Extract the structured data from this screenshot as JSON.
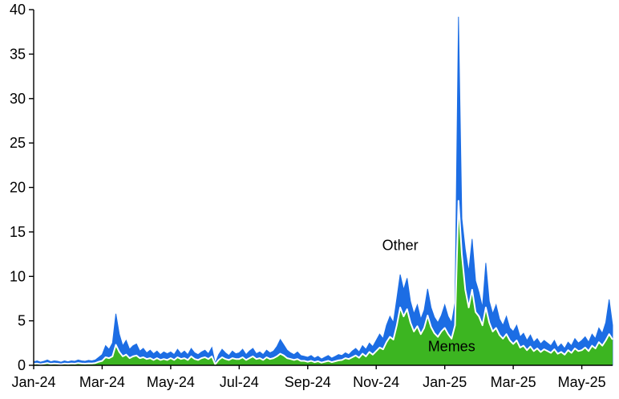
{
  "chart_data": {
    "type": "area",
    "stacked": true,
    "title": "",
    "xlabel": "",
    "ylabel": "",
    "grid": false,
    "legend_position": "none",
    "ylim": [
      0,
      40
    ],
    "y_ticks": [
      0,
      5,
      10,
      15,
      20,
      25,
      30,
      35,
      40
    ],
    "x_tick_labels": [
      "Jan-24",
      "Mar-24",
      "May-24",
      "Jul-24",
      "Sep-24",
      "Nov-24",
      "Jan-25",
      "Mar-25",
      "May-25"
    ],
    "x_tick_indices": [
      0,
      20,
      40,
      60,
      80,
      100,
      120,
      140,
      160
    ],
    "colors": {
      "memes": "#3cb521",
      "other": "#1c6de4",
      "separator": "#ffffff",
      "axis": "#000000"
    },
    "series": [
      {
        "name": "Memes",
        "color": "#3cb521",
        "values": [
          0.15,
          0.2,
          0.12,
          0.18,
          0.25,
          0.15,
          0.2,
          0.17,
          0.12,
          0.2,
          0.15,
          0.2,
          0.18,
          0.25,
          0.2,
          0.18,
          0.22,
          0.2,
          0.25,
          0.4,
          0.5,
          0.9,
          0.8,
          1.0,
          2.3,
          1.5,
          1.0,
          1.2,
          0.8,
          1.0,
          1.1,
          0.8,
          0.9,
          0.7,
          0.8,
          0.6,
          0.8,
          0.6,
          0.7,
          0.6,
          0.8,
          0.6,
          0.9,
          0.7,
          0.8,
          0.6,
          1.0,
          0.7,
          0.6,
          0.8,
          0.9,
          0.7,
          1.0,
          0.12,
          0.6,
          0.9,
          0.7,
          0.6,
          0.8,
          0.7,
          0.7,
          0.9,
          0.6,
          0.8,
          1.0,
          0.7,
          0.8,
          0.6,
          0.9,
          0.7,
          0.8,
          1.0,
          1.3,
          1.1,
          0.8,
          0.7,
          0.6,
          0.7,
          0.5,
          0.5,
          0.4,
          0.5,
          0.35,
          0.45,
          0.3,
          0.4,
          0.5,
          0.35,
          0.45,
          0.55,
          0.6,
          0.8,
          0.7,
          0.9,
          1.1,
          0.85,
          1.3,
          1.0,
          1.5,
          1.2,
          1.6,
          2.0,
          1.8,
          2.6,
          3.2,
          2.9,
          4.5,
          6.5,
          5.5,
          6.3,
          4.8,
          3.8,
          4.4,
          3.5,
          4.2,
          5.6,
          4.3,
          3.6,
          3.2,
          3.8,
          4.2,
          3.5,
          3.0,
          4.5,
          18.5,
          12.5,
          8.5,
          6.5,
          8.5,
          6.0,
          5.5,
          4.5,
          6.5,
          4.8,
          3.8,
          4.2,
          3.4,
          3.0,
          3.5,
          2.8,
          2.4,
          2.8,
          2.0,
          2.2,
          1.7,
          2.1,
          1.6,
          1.9,
          1.5,
          1.8,
          1.6,
          1.4,
          1.8,
          1.3,
          1.5,
          1.2,
          1.7,
          1.4,
          1.9,
          1.6,
          1.7,
          2.0,
          1.6,
          2.2,
          1.9,
          2.6,
          2.2,
          2.8,
          3.5,
          2.9
        ]
      },
      {
        "name": "Other",
        "color": "#1c6de4",
        "values": [
          0.25,
          0.3,
          0.23,
          0.27,
          0.35,
          0.25,
          0.3,
          0.28,
          0.23,
          0.3,
          0.25,
          0.3,
          0.27,
          0.35,
          0.3,
          0.27,
          0.33,
          0.3,
          0.35,
          0.5,
          0.7,
          1.3,
          1.0,
          1.5,
          3.5,
          2.0,
          1.2,
          1.6,
          1.0,
          1.2,
          1.3,
          0.8,
          1.0,
          0.7,
          0.9,
          0.7,
          0.8,
          0.6,
          0.8,
          0.7,
          0.7,
          0.6,
          0.9,
          0.6,
          0.8,
          0.6,
          0.9,
          0.7,
          0.6,
          0.7,
          0.8,
          0.6,
          1.0,
          0.1,
          0.6,
          0.9,
          0.7,
          0.5,
          0.8,
          0.6,
          0.7,
          0.9,
          0.6,
          0.8,
          0.9,
          0.6,
          0.7,
          0.6,
          0.8,
          0.7,
          0.8,
          1.1,
          1.6,
          1.2,
          0.9,
          0.7,
          0.6,
          0.8,
          0.6,
          0.5,
          0.5,
          0.6,
          0.45,
          0.55,
          0.4,
          0.5,
          0.6,
          0.45,
          0.55,
          0.65,
          0.5,
          0.6,
          0.5,
          0.7,
          0.8,
          0.65,
          0.9,
          0.8,
          1.0,
          0.9,
          1.2,
          1.5,
          1.2,
          1.9,
          2.3,
          1.9,
          3.0,
          3.7,
          3.0,
          3.5,
          2.4,
          2.0,
          2.4,
          1.7,
          2.0,
          3.0,
          2.2,
          1.8,
          1.6,
          1.8,
          2.6,
          2.0,
          1.8,
          2.5,
          20.7,
          4.0,
          4.5,
          4.0,
          5.7,
          3.5,
          2.7,
          2.0,
          5.0,
          2.4,
          2.0,
          2.6,
          1.8,
          1.5,
          2.0,
          1.4,
          1.4,
          1.7,
          1.2,
          1.4,
          1.1,
          1.3,
          1.0,
          1.1,
          0.9,
          1.0,
          0.9,
          0.8,
          1.0,
          0.7,
          0.9,
          0.7,
          0.9,
          0.8,
          1.1,
          0.9,
          1.1,
          1.2,
          1.0,
          1.3,
          1.1,
          1.6,
          1.4,
          2.0,
          3.9,
          1.6
        ]
      }
    ],
    "annotations": [
      {
        "text": "Other",
        "x_index": 107,
        "y_value": 13.5
      },
      {
        "text": "Memes",
        "x_index": 122,
        "y_value": 2.1
      }
    ]
  }
}
